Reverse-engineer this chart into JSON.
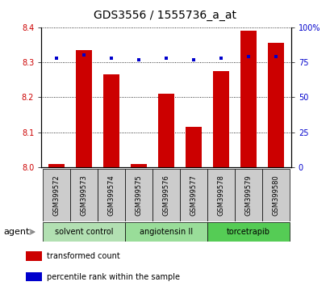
{
  "title": "GDS3556 / 1555736_a_at",
  "samples": [
    "GSM399572",
    "GSM399573",
    "GSM399574",
    "GSM399575",
    "GSM399576",
    "GSM399577",
    "GSM399578",
    "GSM399579",
    "GSM399580"
  ],
  "bar_values": [
    8.01,
    8.335,
    8.265,
    8.01,
    8.21,
    8.115,
    8.275,
    8.39,
    8.355
  ],
  "percentile_values": [
    78,
    80,
    78,
    77,
    78,
    77,
    78,
    79,
    79
  ],
  "ylim_left": [
    8.0,
    8.4
  ],
  "ylim_right": [
    0,
    100
  ],
  "yticks_left": [
    8.0,
    8.1,
    8.2,
    8.3,
    8.4
  ],
  "yticks_right": [
    0,
    25,
    50,
    75,
    100
  ],
  "bar_color": "#cc0000",
  "dot_color": "#0000cc",
  "bar_width": 0.6,
  "agents": [
    {
      "label": "solvent control",
      "samples": [
        0,
        1,
        2
      ],
      "color": "#b2e0b2"
    },
    {
      "label": "angiotensin II",
      "samples": [
        3,
        4,
        5
      ],
      "color": "#99dd99"
    },
    {
      "label": "torcetrapib",
      "samples": [
        6,
        7,
        8
      ],
      "color": "#55cc55"
    }
  ],
  "agent_label": "agent",
  "legend": [
    {
      "label": "transformed count",
      "color": "#cc0000"
    },
    {
      "label": "percentile rank within the sample",
      "color": "#0000cc"
    }
  ],
  "sample_box_color": "#cccccc",
  "left_axis_color": "#cc0000",
  "right_axis_color": "#0000cc",
  "title_fontsize": 10,
  "tick_fontsize": 7,
  "sample_fontsize": 6,
  "agent_fontsize": 7,
  "legend_fontsize": 7
}
